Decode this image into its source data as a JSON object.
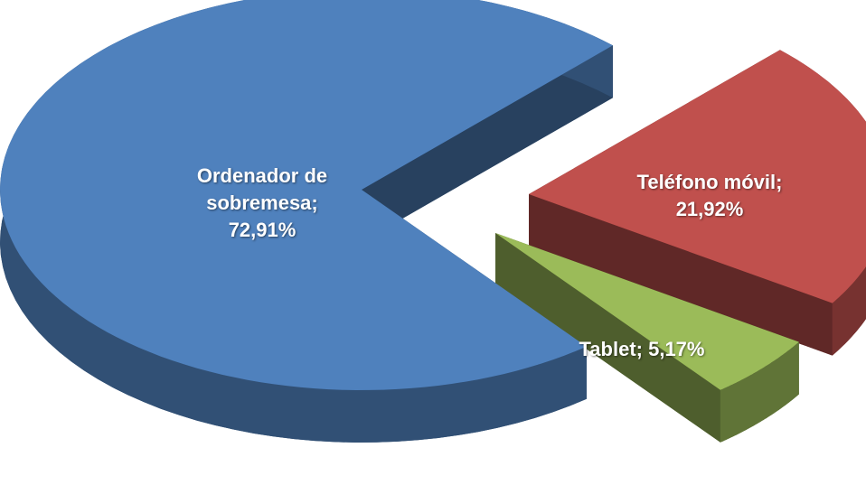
{
  "chart_data": {
    "type": "pie",
    "values": [
      72.91,
      21.92,
      5.17
    ],
    "value_labels": [
      "Ordenador de sobremesa; 72,91%",
      "Teléfono móvil; 21,92%",
      "Tablet; 5,17%"
    ],
    "colors": [
      "#4f81bd",
      "#c0504d",
      "#9bbb59"
    ]
  }
}
